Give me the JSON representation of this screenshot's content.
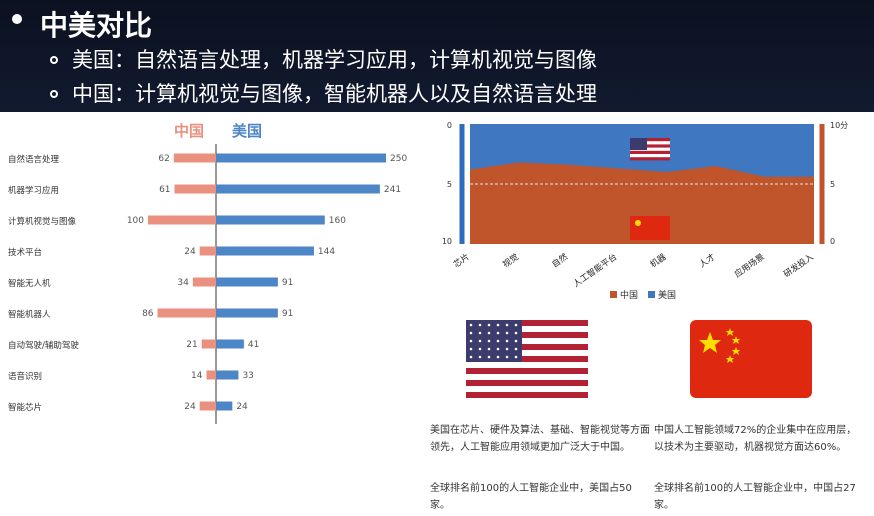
{
  "slide": {
    "title": "中美对比",
    "points": [
      "美国：自然语言处理，机器学习应用，计算机视觉与图像",
      "中国：计算机视觉与图像，智能机器人以及自然语言处理"
    ]
  },
  "chart_data": [
    {
      "type": "bar",
      "legend": [
        "中国",
        "美国"
      ],
      "categories": [
        "自然语言处理",
        "机器学习应用",
        "计算机视觉与图像",
        "技术平台",
        "智能无人机",
        "智能机器人",
        "自动驾驶/辅助驾驶",
        "语音识别",
        "智能芯片"
      ],
      "series": [
        {
          "name": "中国",
          "values": [
            62,
            61,
            100,
            24,
            34,
            86,
            21,
            14,
            24
          ]
        },
        {
          "name": "美国",
          "values": [
            250,
            241,
            160,
            144,
            91,
            91,
            41,
            33,
            24
          ]
        }
      ]
    },
    {
      "type": "area",
      "categories": [
        "芯片",
        "视觉",
        "自然",
        "人工智能平台",
        "机器",
        "人才",
        "应用场景",
        "研发投入"
      ],
      "series": [
        {
          "name": "中国",
          "values": [
            6.2,
            6.8,
            6.6,
            6.3,
            6.0,
            6.5,
            5.6,
            5.6
          ]
        },
        {
          "name": "美国",
          "values": [
            10,
            10,
            10,
            10,
            10,
            10,
            10,
            10
          ]
        }
      ],
      "left_axis": [
        "0",
        "5",
        "10"
      ],
      "right_axis": [
        "10分",
        "5",
        "0"
      ],
      "legend": [
        "中国",
        "美国"
      ]
    }
  ],
  "text_us": "美国在芯片、硬件及算法、基础、智能视觉等方面领先，人工智能应用领域更加广泛大于中国。",
  "text_us2": "全球排名前100的人工智能企业中，美国占50家。",
  "text_cn": "中国人工智能领域72%的企业集中在应用层，以技术为主要驱动，机器视觉方面达60%。",
  "text_cn2": "全球排名前100的人工智能企业中，中国占27家。",
  "colors": {
    "china": "#e9907f",
    "usa": "#4c86c6",
    "china_area": "#c0542a",
    "usa_area": "#3f78c0"
  }
}
